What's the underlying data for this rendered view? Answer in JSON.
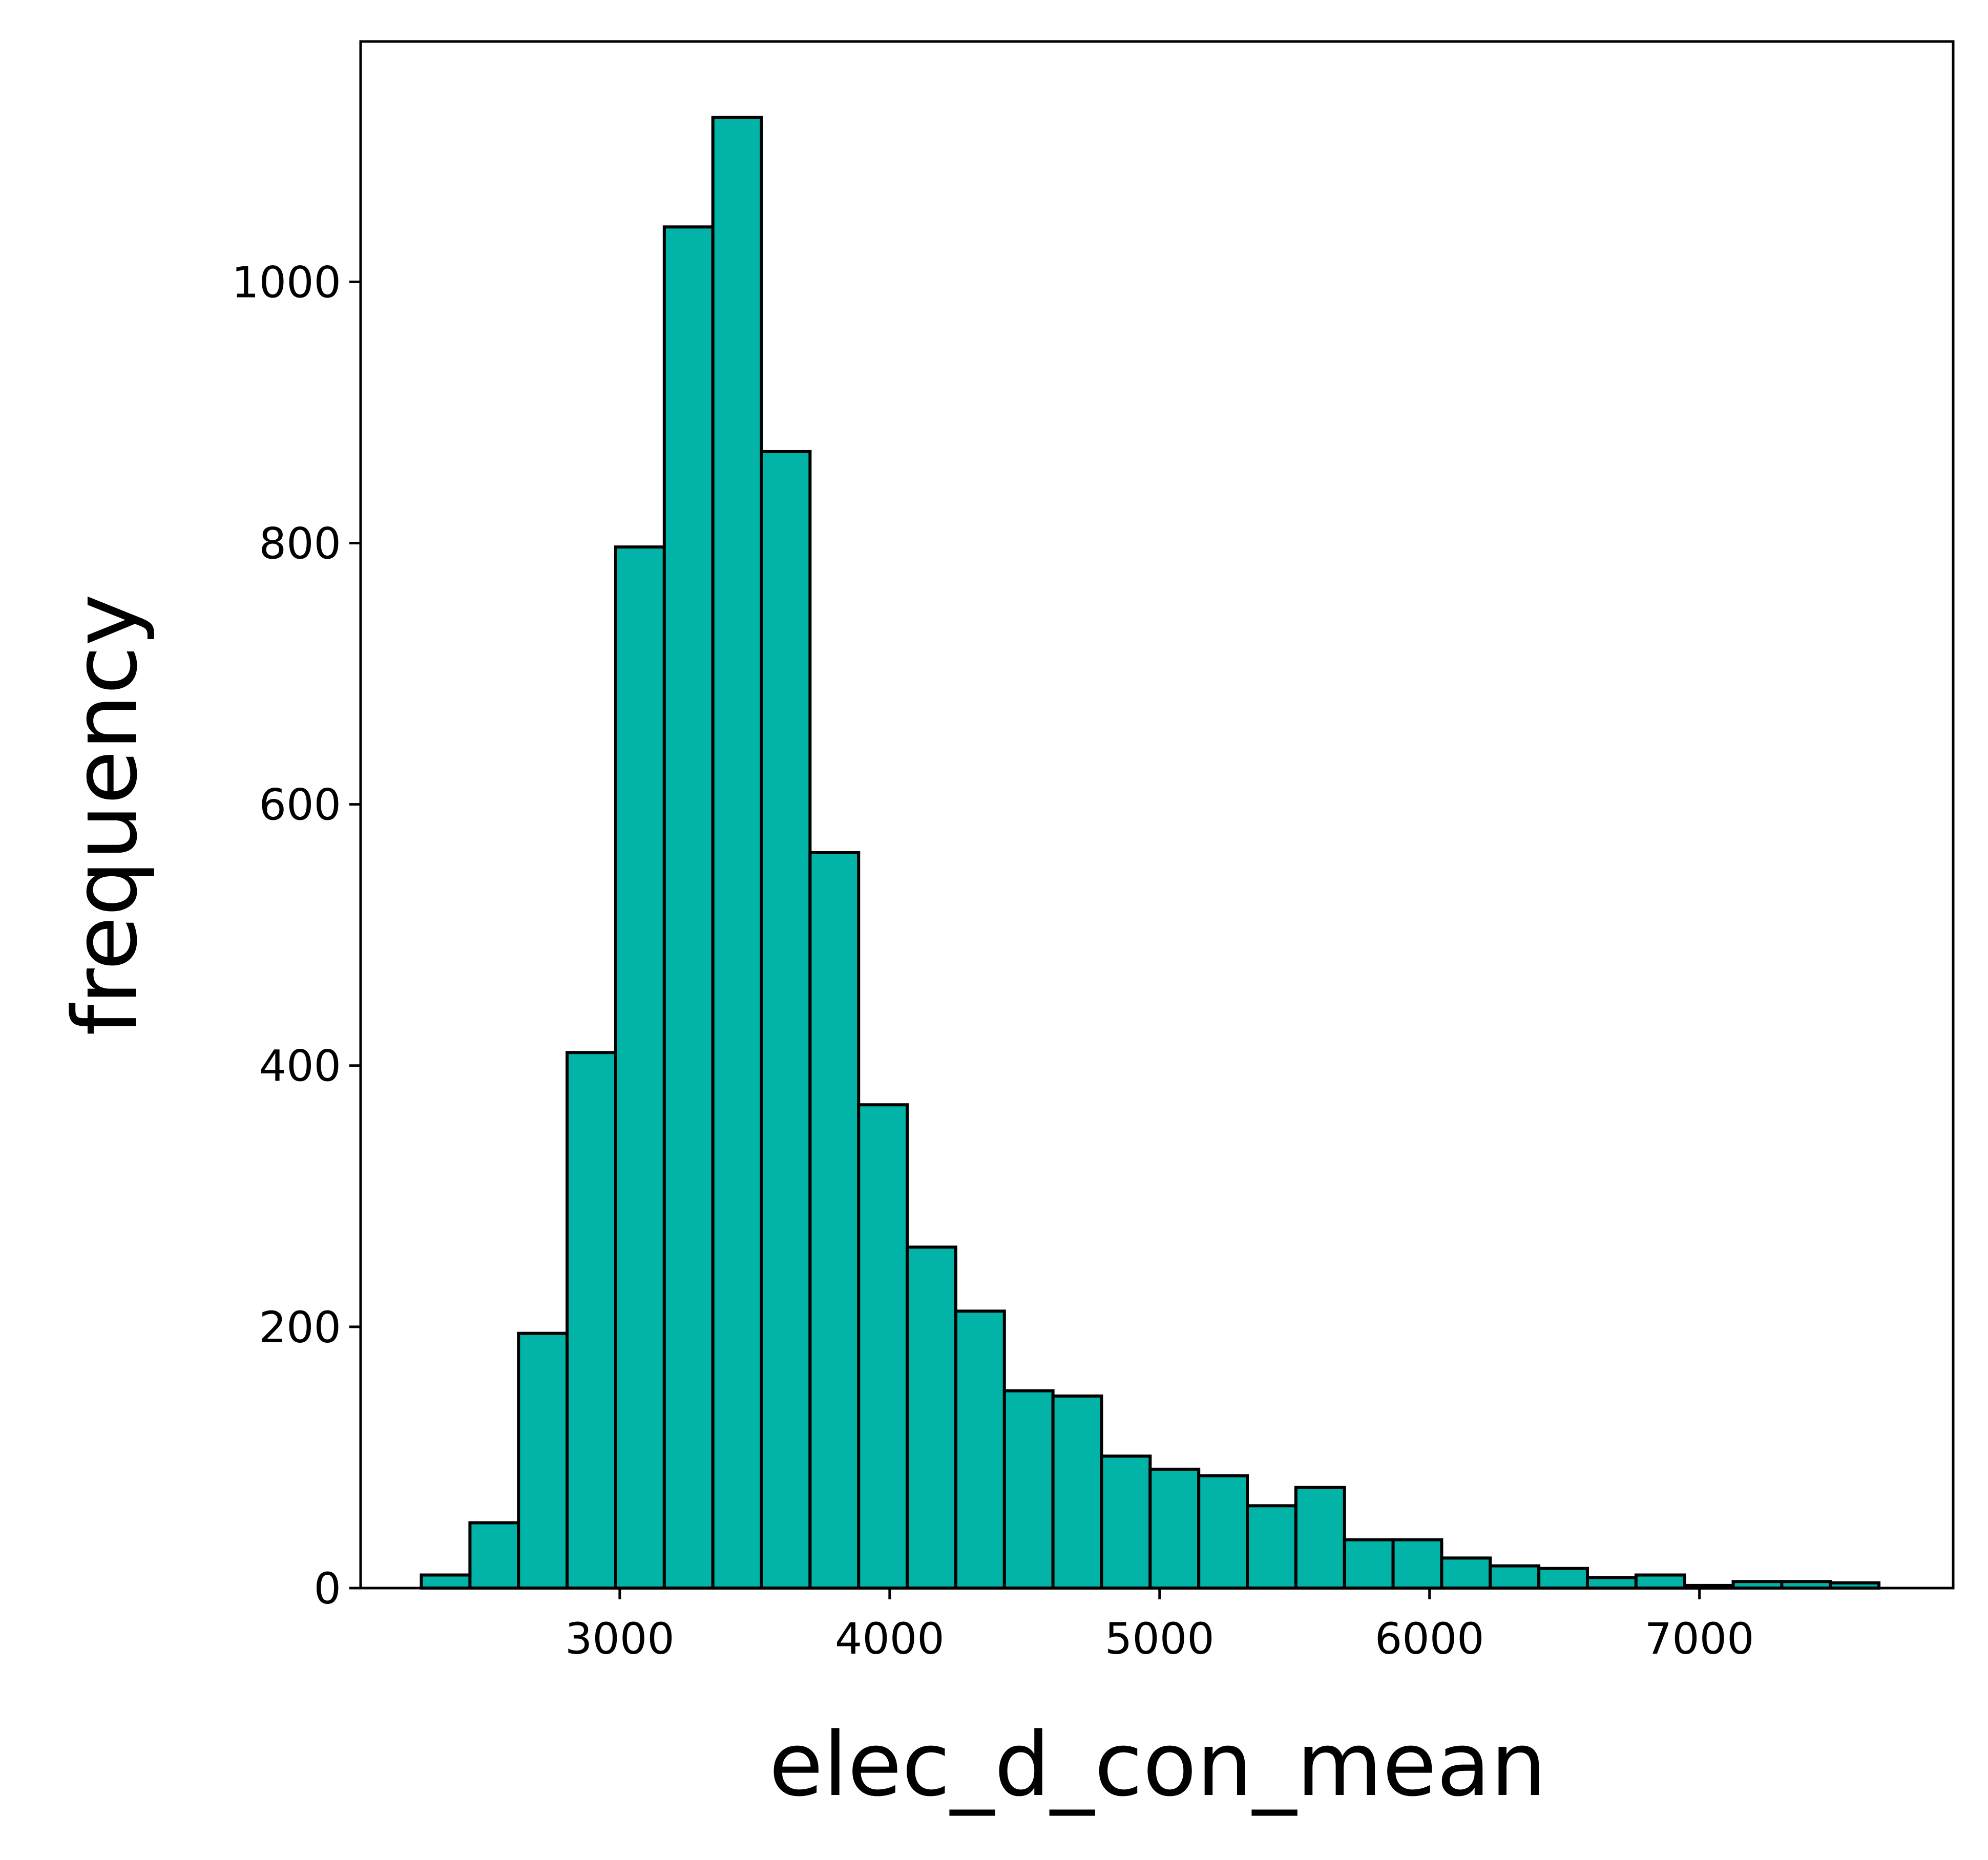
{
  "chart_data": {
    "type": "histogram",
    "xlabel": "elec_d_con_mean",
    "ylabel": "frequency",
    "xlim": [
      2040,
      7940
    ],
    "ylim": [
      0,
      1184
    ],
    "x_ticks": [
      3000,
      4000,
      5000,
      6000,
      7000
    ],
    "y_ticks": [
      0,
      200,
      400,
      600,
      800,
      1000
    ],
    "bar_color": "#02b3a7",
    "edge_color": "#000000",
    "grid": false,
    "legend": "none",
    "bin_edges": [
      2265,
      2445,
      2625,
      2805,
      2985,
      3165,
      3345,
      3525,
      3705,
      3885,
      4065,
      4245,
      4425,
      4605,
      4785,
      4965,
      5145,
      5325,
      5505,
      5685,
      5865,
      6045,
      6225,
      6405,
      6585,
      6765,
      6945,
      7125,
      7305,
      7485,
      7665
    ],
    "values": [
      10,
      50,
      195,
      410,
      797,
      1042,
      1126,
      870,
      563,
      370,
      261,
      212,
      151,
      147,
      101,
      91,
      86,
      63,
      77,
      37,
      37,
      23,
      17,
      15,
      8,
      10,
      2,
      5,
      5,
      4
    ]
  }
}
